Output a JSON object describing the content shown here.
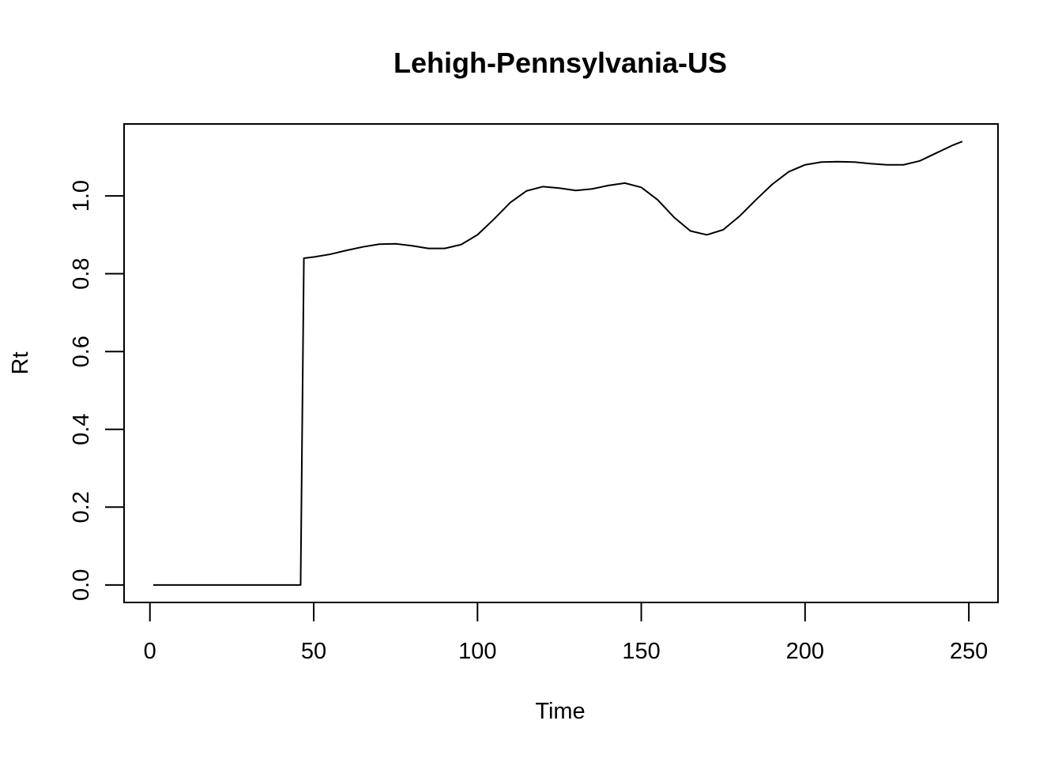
{
  "chart_data": {
    "type": "line",
    "title": "Lehigh-Pennsylvania-US",
    "xlabel": "Time",
    "ylabel": "Rt",
    "xlim": [
      -7.9,
      258.9
    ],
    "ylim": [
      -0.045,
      1.185
    ],
    "x_ticks": [
      0,
      50,
      100,
      150,
      200,
      250
    ],
    "x_tick_labels": [
      "0",
      "50",
      "100",
      "150",
      "200",
      "250"
    ],
    "y_ticks": [
      0.0,
      0.2,
      0.4,
      0.6,
      0.8,
      1.0
    ],
    "y_tick_labels": [
      "0.0",
      "0.2",
      "0.4",
      "0.6",
      "0.8",
      "1.0"
    ],
    "grid": false,
    "color": "#000000",
    "series": [
      {
        "x": [
          1,
          10,
          20,
          30,
          40,
          46,
          47,
          50,
          55,
          60,
          65,
          70,
          75,
          80,
          85,
          90,
          95,
          100,
          105,
          110,
          115,
          120,
          125,
          130,
          135,
          140,
          145,
          150,
          155,
          160,
          165,
          170,
          175,
          180,
          185,
          190,
          195,
          200,
          205,
          210,
          215,
          220,
          225,
          230,
          235,
          240,
          245,
          248
        ],
        "y": [
          0.0,
          0.0,
          0.0,
          0.0,
          0.0,
          0.0,
          0.84,
          0.843,
          0.85,
          0.86,
          0.869,
          0.876,
          0.877,
          0.872,
          0.865,
          0.865,
          0.875,
          0.9,
          0.94,
          0.983,
          1.013,
          1.024,
          1.02,
          1.014,
          1.018,
          1.027,
          1.033,
          1.022,
          0.99,
          0.945,
          0.91,
          0.9,
          0.913,
          0.948,
          0.99,
          1.03,
          1.062,
          1.08,
          1.087,
          1.088,
          1.087,
          1.083,
          1.08,
          1.08,
          1.09,
          1.11,
          1.13,
          1.14
        ]
      }
    ]
  }
}
